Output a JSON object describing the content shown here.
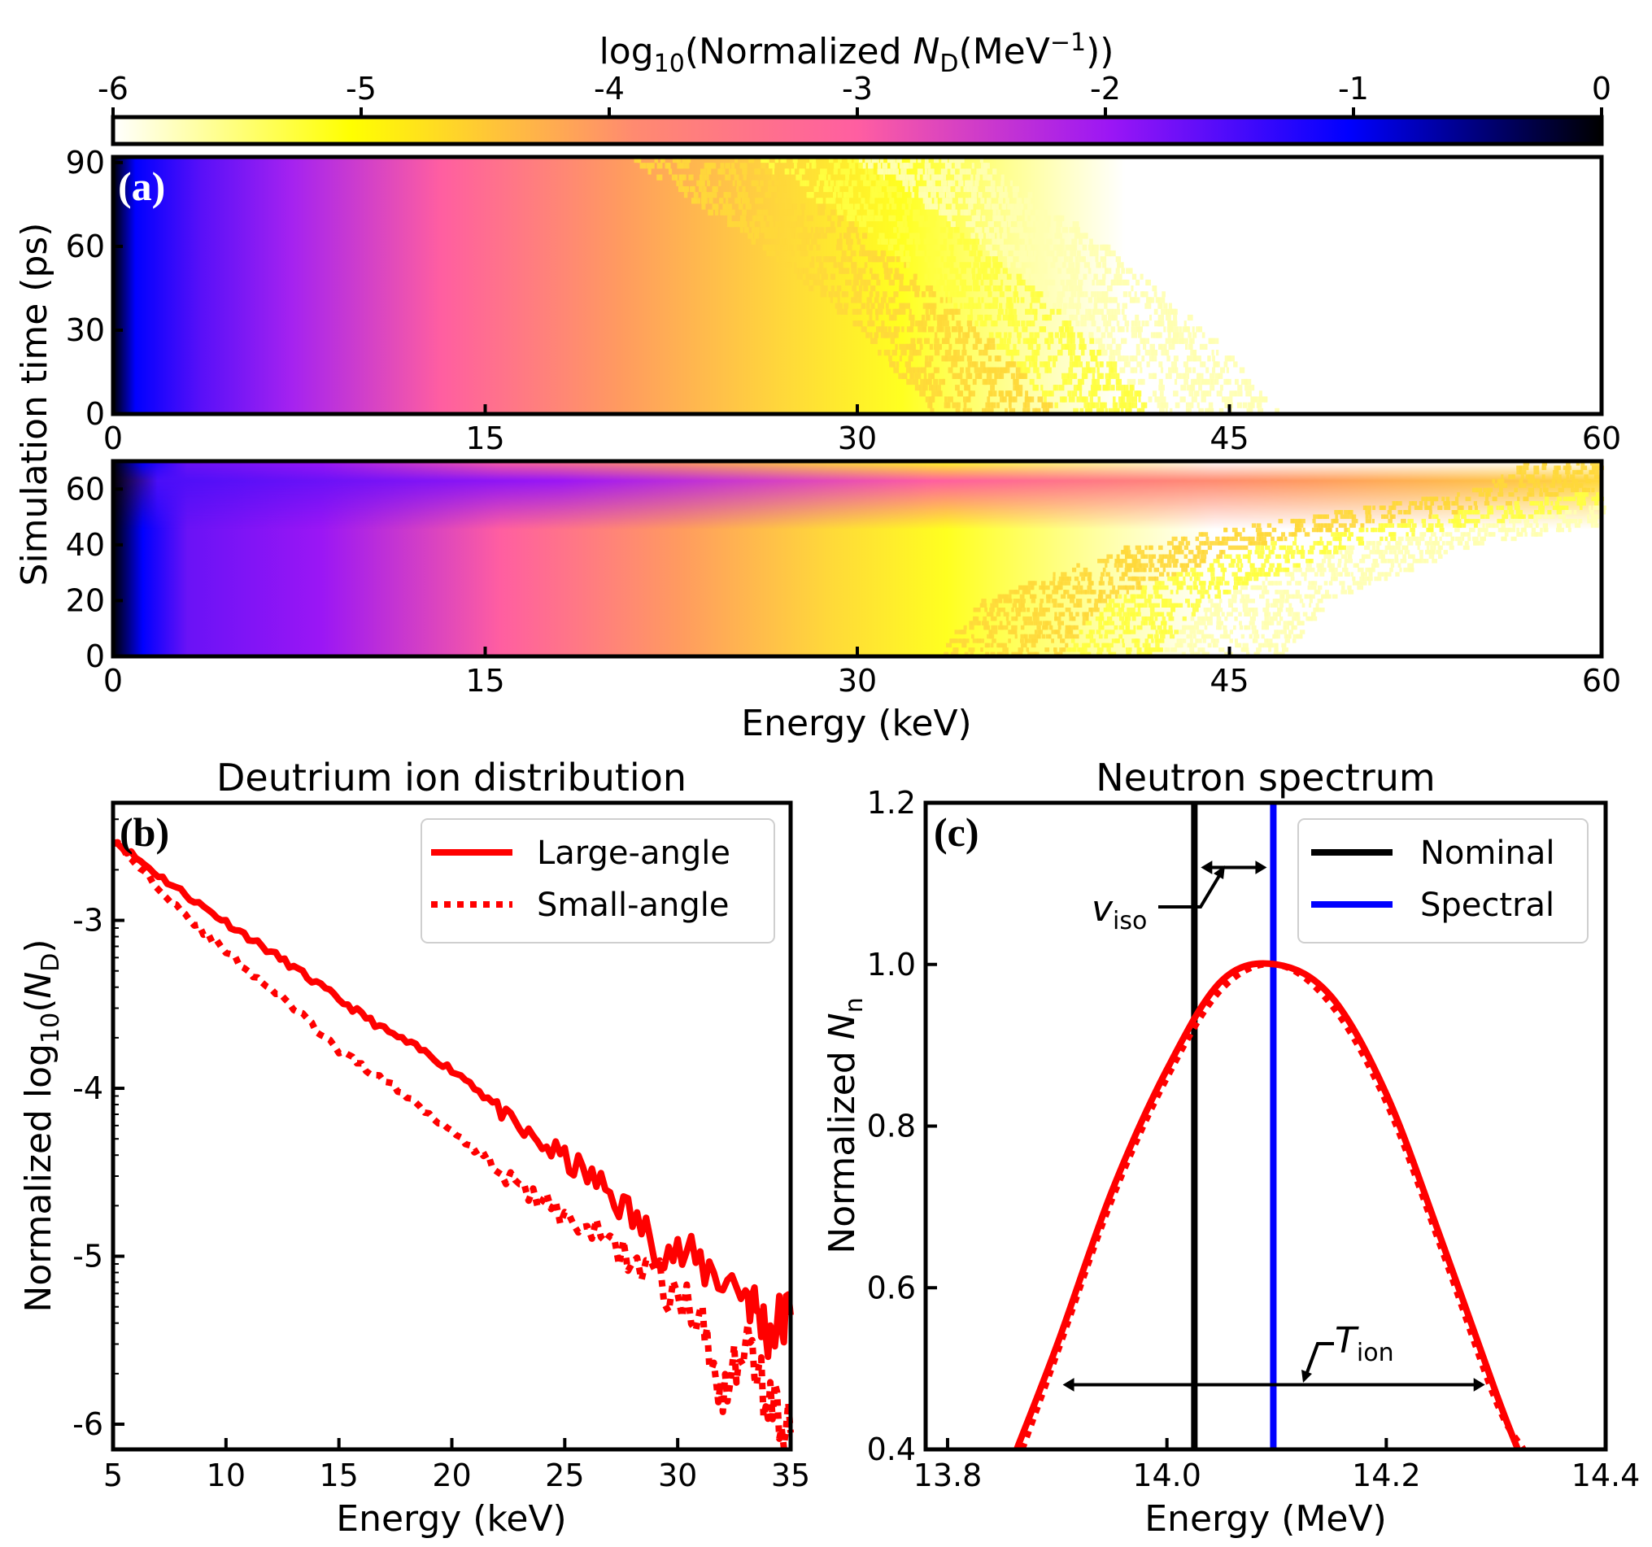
{
  "colorbar": {
    "label_pre": "log",
    "label_sub": "10",
    "label_mid": "(Normalized ",
    "label_var": "N",
    "label_var_sub": "D",
    "label_unit_pre": "(MeV",
    "label_unit_sup": "−1",
    "label_unit_post": "))",
    "ticks": [
      "-6",
      "-5",
      "-4",
      "-3",
      "-2",
      "-1",
      "0"
    ],
    "range": [
      -6,
      0
    ],
    "colormap": "gnuplot2_r",
    "colors": [
      "#ffffff",
      "#ffff00",
      "#ff5ea1",
      "#9b16f5",
      "#0000ff",
      "#000000"
    ]
  },
  "panel_a": {
    "letter": "(a)",
    "shared_ylabel": "Simulation time (ps)",
    "xlabel": "Energy (keV)",
    "top": {
      "x_ticks": [
        "0",
        "15",
        "30",
        "45",
        "60"
      ],
      "y_ticks": [
        "0",
        "30",
        "60",
        "90"
      ],
      "xlim": [
        0,
        60
      ],
      "ylim": [
        0,
        92
      ]
    },
    "bottom": {
      "x_ticks": [
        "0",
        "15",
        "30",
        "45",
        "60"
      ],
      "y_ticks": [
        "0",
        "20",
        "40",
        "60"
      ],
      "xlim": [
        0,
        60
      ],
      "ylim": [
        0,
        70
      ]
    }
  },
  "panel_b": {
    "letter": "(b)",
    "title": "Deutrium ion distribution",
    "xlabel": "Energy (keV)",
    "ylabel_pre": "Normalized log",
    "ylabel_sub": "10",
    "ylabel_mid": "(",
    "ylabel_var": "N",
    "ylabel_var_sub": "D",
    "ylabel_post": ")",
    "x_ticks": [
      "5",
      "10",
      "15",
      "20",
      "25",
      "30",
      "35"
    ],
    "y_ticks": [
      "-3",
      "-4",
      "-5",
      "-6"
    ],
    "legend": [
      "Large-angle",
      "Small-angle"
    ]
  },
  "panel_c": {
    "letter": "(c)",
    "title": "Neutron spectrum",
    "xlabel": "Energy (MeV)",
    "ylabel_pre": "Normalized ",
    "ylabel_var": "N",
    "ylabel_var_sub": "n",
    "x_ticks": [
      "13.8",
      "14.0",
      "14.2",
      "14.4"
    ],
    "y_ticks": [
      "0.4",
      "0.6",
      "0.8",
      "1.0",
      "1.2"
    ],
    "legend": [
      "Nominal",
      "Spectral"
    ],
    "annotation_v": "v",
    "annotation_v_sub": "iso",
    "annotation_t": "T",
    "annotation_t_sub": "ion"
  },
  "chart_data": [
    {
      "type": "heatmap",
      "panel": "(a) top",
      "xlabel": "Energy (keV)",
      "ylabel": "Simulation time (ps)",
      "xlim": [
        0,
        60
      ],
      "ylim": [
        0,
        92
      ],
      "colorbar_range": [
        -6,
        0
      ],
      "description_values": {
        "energy_at_minus5_keV_vs_time_ps": [
          [
            0,
            36
          ],
          [
            30,
            33
          ],
          [
            60,
            29
          ],
          [
            90,
            24
          ]
        ]
      }
    },
    {
      "type": "heatmap",
      "panel": "(a) bottom",
      "xlabel": "Energy (keV)",
      "ylabel": "Simulation time (ps)",
      "xlim": [
        0,
        60
      ],
      "ylim": [
        0,
        70
      ],
      "colorbar_range": [
        -6,
        0
      ],
      "description_values": {
        "energy_at_minus5_keV_vs_time_ps": [
          [
            0,
            36
          ],
          [
            20,
            38
          ],
          [
            40,
            44
          ],
          [
            60,
            58
          ],
          [
            70,
            60
          ]
        ]
      }
    },
    {
      "type": "line",
      "panel": "(b)",
      "title": "Deutrium ion distribution",
      "xlabel": "Energy (keV)",
      "ylabel": "Normalized log10(ND)",
      "xlim": [
        5,
        35
      ],
      "ylim": [
        -6.15,
        -2.3
      ],
      "series": [
        {
          "name": "Large-angle",
          "style": "solid",
          "x": [
            5,
            7,
            9,
            11,
            13,
            15,
            17,
            19,
            21,
            23,
            25,
            27,
            29,
            31,
            33,
            34,
            35
          ],
          "y": [
            -2.52,
            -2.73,
            -2.92,
            -3.1,
            -3.28,
            -3.47,
            -3.65,
            -3.8,
            -3.98,
            -4.25,
            -4.42,
            -4.62,
            -4.92,
            -5.05,
            -5.2,
            -5.45,
            -5.35
          ]
        },
        {
          "name": "Small-angle",
          "style": "dotted",
          "x": [
            5,
            7,
            9,
            11,
            13,
            15,
            17,
            19,
            21,
            23,
            25,
            27,
            29,
            31,
            32,
            33,
            34,
            35
          ],
          "y": [
            -2.52,
            -2.8,
            -3.07,
            -3.3,
            -3.52,
            -3.78,
            -3.95,
            -4.15,
            -4.35,
            -4.6,
            -4.75,
            -4.92,
            -5.12,
            -5.38,
            -5.8,
            -5.5,
            -5.85,
            -6.05
          ]
        }
      ]
    },
    {
      "type": "line",
      "panel": "(c)",
      "title": "Neutron spectrum",
      "xlabel": "Energy (MeV)",
      "ylabel": "Normalized Nn",
      "xlim": [
        13.78,
        14.4
      ],
      "ylim": [
        0.4,
        1.2
      ],
      "series": [
        {
          "name": "spectrum (solid)",
          "style": "solid",
          "x": [
            13.863,
            13.9,
            13.95,
            14.0,
            14.05,
            14.1,
            14.15,
            14.2,
            14.25,
            14.3,
            14.32
          ],
          "y": [
            0.4,
            0.53,
            0.72,
            0.87,
            0.98,
            1.0,
            0.96,
            0.84,
            0.66,
            0.47,
            0.4
          ]
        },
        {
          "name": "spectrum (dotted)",
          "style": "dotted",
          "x": [
            13.868,
            13.9,
            13.95,
            14.0,
            14.05,
            14.1,
            14.15,
            14.2,
            14.25,
            14.3,
            14.325
          ],
          "y": [
            0.4,
            0.52,
            0.71,
            0.86,
            0.97,
            1.0,
            0.95,
            0.83,
            0.65,
            0.46,
            0.4
          ]
        },
        {
          "name": "Nominal",
          "style": "vertical",
          "x": [
            14.025
          ]
        },
        {
          "name": "Spectral",
          "style": "vertical",
          "x": [
            14.097
          ]
        }
      ],
      "annotations": {
        "v_iso_arrow_x": [
          14.025,
          14.097
        ],
        "v_iso_arrow_y": 1.12,
        "T_ion_arrow_x": [
          13.905,
          14.29
        ],
        "T_ion_arrow_y": 0.48
      }
    }
  ]
}
